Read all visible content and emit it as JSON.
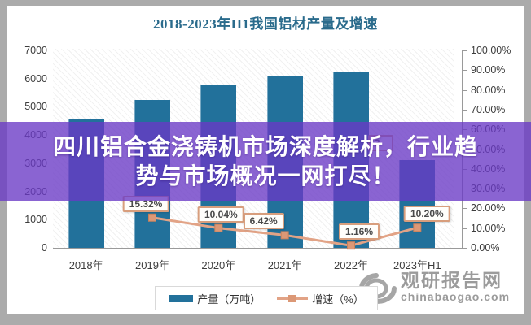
{
  "overlay": {
    "line1": "四川铝合金浇铸机市场深度解析，行业趋",
    "line2": "势与市场概况一网打尽！"
  },
  "watermark": {
    "name": "观研报告网",
    "site": "chinabaogao.com"
  },
  "chart_data": {
    "type": "bar",
    "combo": "bar+line",
    "title": "2018-2023年H1我国铝材产量及增速",
    "categories": [
      "2018年",
      "2019年",
      "2020年",
      "2021年",
      "2022年",
      "2023年H1"
    ],
    "series": [
      {
        "name": "产量（万吨）",
        "type": "bar",
        "axis": "left",
        "color": "#22719B",
        "values": [
          4550,
          5230,
          5780,
          6120,
          6250,
          3100
        ]
      },
      {
        "name": "增速（%）",
        "type": "line",
        "axis": "right",
        "color": "#E2A386",
        "marker_color": "#DC9876",
        "values": [
          null,
          15.32,
          10.04,
          6.42,
          1.16,
          10.2
        ],
        "labels": [
          null,
          "15.32%",
          "10.04%",
          "6.42%",
          "1.16%",
          "10.20%"
        ]
      }
    ],
    "left_axis": {
      "min": 0,
      "max": 7000,
      "step": 1000,
      "ticks": [
        "0",
        "1000",
        "2000",
        "3000",
        "4000",
        "5000",
        "6000",
        "7000"
      ]
    },
    "right_axis": {
      "min": 0,
      "max": 100,
      "step": 10,
      "ticks": [
        "0.00%",
        "10.00%",
        "20.00%",
        "30.00%",
        "40.00%",
        "50.00%",
        "60.00%",
        "70.00%",
        "80.00%",
        "90.00%",
        "100.00%"
      ]
    },
    "legend_position": "bottom",
    "grid": false,
    "partial_hidden_label": "3"
  },
  "colors": {
    "frame": "#ABABAB",
    "title": "#2A6B8C",
    "overlay": "rgba(105,56,197,0.78)",
    "watermark": "#9B9B9B"
  }
}
